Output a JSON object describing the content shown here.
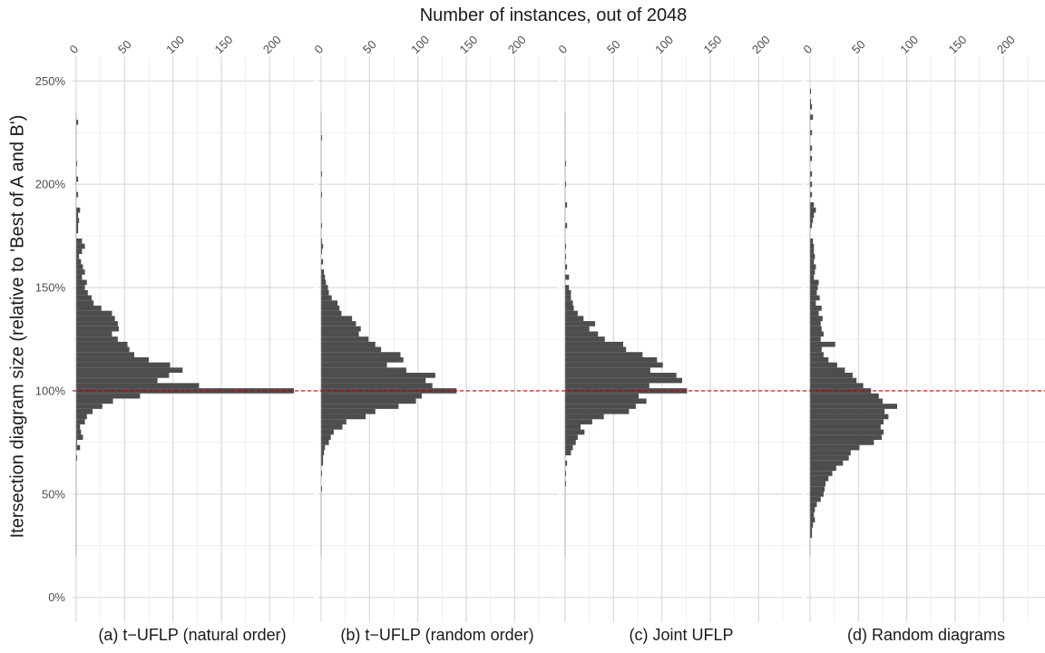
{
  "chart_data": {
    "type": "histogram",
    "title": "Number of instances, out of 2048",
    "ylabel": "Itersection diagram size (relative to 'Best of A and B')",
    "y_ticks": [
      "0%",
      "50%",
      "100%",
      "150%",
      "200%",
      "250%"
    ],
    "y_tick_values": [
      0,
      50,
      100,
      150,
      200,
      250
    ],
    "ylim": [
      -12,
      262
    ],
    "x_ticks": [
      "0",
      "50",
      "100",
      "150",
      "200"
    ],
    "x_tick_values": [
      0,
      50,
      100,
      150,
      200
    ],
    "xlim": [
      0,
      225
    ],
    "bin_width_percent": 2.5,
    "reference_line": {
      "y": 100,
      "color": "#cc0000",
      "style": "dashed"
    },
    "bar_color": "#4d4d4d",
    "panels": [
      {
        "label": "(a) t−UFLP (natural order)",
        "bins": [
          [
            67.5,
            1
          ],
          [
            72.5,
            4
          ],
          [
            75,
            1
          ],
          [
            77.5,
            7
          ],
          [
            80,
            5
          ],
          [
            82.5,
            4
          ],
          [
            85,
            9
          ],
          [
            87.5,
            11
          ],
          [
            90,
            17
          ],
          [
            92.5,
            27
          ],
          [
            95,
            38
          ],
          [
            97.5,
            66
          ],
          [
            100,
            225
          ],
          [
            102.5,
            127
          ],
          [
            105,
            84
          ],
          [
            107.5,
            96
          ],
          [
            110,
            110
          ],
          [
            112.5,
            97
          ],
          [
            115,
            75
          ],
          [
            117.5,
            60
          ],
          [
            120,
            55
          ],
          [
            122.5,
            53
          ],
          [
            125,
            43
          ],
          [
            127.5,
            37
          ],
          [
            130,
            44
          ],
          [
            132.5,
            43
          ],
          [
            135,
            40
          ],
          [
            137.5,
            37
          ],
          [
            140,
            26
          ],
          [
            142.5,
            18
          ],
          [
            145,
            16
          ],
          [
            147.5,
            12
          ],
          [
            150,
            9
          ],
          [
            152.5,
            11
          ],
          [
            155,
            6
          ],
          [
            157.5,
            9
          ],
          [
            160,
            7
          ],
          [
            162.5,
            5
          ],
          [
            165,
            3
          ],
          [
            167.5,
            6
          ],
          [
            170,
            9
          ],
          [
            172.5,
            6
          ],
          [
            177.5,
            2
          ],
          [
            180,
            2
          ],
          [
            182.5,
            3
          ],
          [
            185,
            2
          ],
          [
            187.5,
            4
          ],
          [
            195,
            2
          ],
          [
            202.5,
            2
          ],
          [
            210,
            1
          ],
          [
            230,
            2
          ]
        ]
      },
      {
        "label": "(b) t−UFLP (random order)",
        "bins": [
          [
            52.5,
            1
          ],
          [
            60,
            1
          ],
          [
            65,
            2
          ],
          [
            67.5,
            2
          ],
          [
            70,
            3
          ],
          [
            72.5,
            4
          ],
          [
            75,
            8
          ],
          [
            77.5,
            10
          ],
          [
            80,
            13
          ],
          [
            82.5,
            22
          ],
          [
            85,
            26
          ],
          [
            87.5,
            46
          ],
          [
            90,
            56
          ],
          [
            92.5,
            80
          ],
          [
            95,
            98
          ],
          [
            97.5,
            104
          ],
          [
            100,
            140
          ],
          [
            102.5,
            115
          ],
          [
            105,
            108
          ],
          [
            107.5,
            118
          ],
          [
            110,
            88
          ],
          [
            112.5,
            68
          ],
          [
            115,
            85
          ],
          [
            117.5,
            82
          ],
          [
            120,
            62
          ],
          [
            122.5,
            56
          ],
          [
            125,
            49
          ],
          [
            127.5,
            39
          ],
          [
            130,
            41
          ],
          [
            132.5,
            36
          ],
          [
            135,
            32
          ],
          [
            137.5,
            21
          ],
          [
            140,
            19
          ],
          [
            142.5,
            17
          ],
          [
            145,
            11
          ],
          [
            147.5,
            8
          ],
          [
            150,
            7
          ],
          [
            152.5,
            5
          ],
          [
            155,
            4
          ],
          [
            157.5,
            3
          ],
          [
            162.5,
            2
          ],
          [
            167.5,
            1
          ],
          [
            170,
            2
          ],
          [
            172.5,
            1
          ],
          [
            180,
            1
          ],
          [
            195,
            1
          ],
          [
            205,
            1
          ],
          [
            222.5,
            1
          ]
        ]
      },
      {
        "label": "(c) Joint UFLP",
        "bins": [
          [
            55,
            1
          ],
          [
            60,
            1
          ],
          [
            65,
            2
          ],
          [
            70,
            6
          ],
          [
            72.5,
            8
          ],
          [
            75,
            11
          ],
          [
            77.5,
            13
          ],
          [
            80,
            20
          ],
          [
            82.5,
            16
          ],
          [
            85,
            28
          ],
          [
            87.5,
            40
          ],
          [
            90,
            66
          ],
          [
            92.5,
            73
          ],
          [
            95,
            84
          ],
          [
            97.5,
            76
          ],
          [
            100,
            126
          ],
          [
            102.5,
            87
          ],
          [
            105,
            121
          ],
          [
            107.5,
            115
          ],
          [
            110,
            88
          ],
          [
            112.5,
            101
          ],
          [
            115,
            95
          ],
          [
            117.5,
            80
          ],
          [
            120,
            63
          ],
          [
            122.5,
            60
          ],
          [
            125,
            41
          ],
          [
            127.5,
            34
          ],
          [
            130,
            25
          ],
          [
            132.5,
            31
          ],
          [
            135,
            19
          ],
          [
            137.5,
            13
          ],
          [
            140,
            9
          ],
          [
            142.5,
            8
          ],
          [
            145,
            6
          ],
          [
            147.5,
            6
          ],
          [
            150,
            4
          ],
          [
            155,
            4
          ],
          [
            160,
            2
          ],
          [
            165,
            1
          ],
          [
            170,
            1
          ],
          [
            180,
            2
          ],
          [
            190,
            2
          ],
          [
            200,
            1
          ],
          [
            210,
            1
          ]
        ]
      },
      {
        "label": "(d) Random diagrams",
        "bins": [
          [
            30,
            2
          ],
          [
            32.5,
            2
          ],
          [
            35,
            3
          ],
          [
            37.5,
            5
          ],
          [
            40,
            4
          ],
          [
            42.5,
            5
          ],
          [
            45,
            7
          ],
          [
            47.5,
            11
          ],
          [
            50,
            14
          ],
          [
            52.5,
            15
          ],
          [
            55,
            16
          ],
          [
            57.5,
            19
          ],
          [
            60,
            23
          ],
          [
            62.5,
            27
          ],
          [
            65,
            34
          ],
          [
            67.5,
            40
          ],
          [
            70,
            42
          ],
          [
            72.5,
            51
          ],
          [
            75,
            66
          ],
          [
            77.5,
            74
          ],
          [
            80,
            76
          ],
          [
            82.5,
            73
          ],
          [
            85,
            76
          ],
          [
            87.5,
            81
          ],
          [
            90,
            77
          ],
          [
            92.5,
            90
          ],
          [
            95,
            75
          ],
          [
            97.5,
            71
          ],
          [
            100,
            63
          ],
          [
            102.5,
            55
          ],
          [
            105,
            48
          ],
          [
            107.5,
            44
          ],
          [
            110,
            36
          ],
          [
            112.5,
            28
          ],
          [
            115,
            19
          ],
          [
            117.5,
            14
          ],
          [
            120,
            12
          ],
          [
            122.5,
            26
          ],
          [
            125,
            11
          ],
          [
            127.5,
            14
          ],
          [
            130,
            12
          ],
          [
            132.5,
            11
          ],
          [
            135,
            13
          ],
          [
            137.5,
            9
          ],
          [
            140,
            12
          ],
          [
            142.5,
            6
          ],
          [
            145,
            10
          ],
          [
            147.5,
            7
          ],
          [
            150,
            8
          ],
          [
            152.5,
            9
          ],
          [
            155,
            4
          ],
          [
            157.5,
            5
          ],
          [
            160,
            6
          ],
          [
            162.5,
            4
          ],
          [
            165,
            5
          ],
          [
            167.5,
            4
          ],
          [
            170,
            4
          ],
          [
            172.5,
            3
          ],
          [
            180,
            2
          ],
          [
            182.5,
            3
          ],
          [
            185,
            4
          ],
          [
            187.5,
            6
          ],
          [
            190,
            4
          ],
          [
            195,
            2
          ],
          [
            200,
            2
          ],
          [
            205,
            2
          ],
          [
            212.5,
            2
          ],
          [
            217.5,
            2
          ],
          [
            225,
            2
          ],
          [
            232.5,
            3
          ],
          [
            237.5,
            2
          ],
          [
            240,
            1
          ],
          [
            245,
            1
          ]
        ]
      }
    ]
  }
}
